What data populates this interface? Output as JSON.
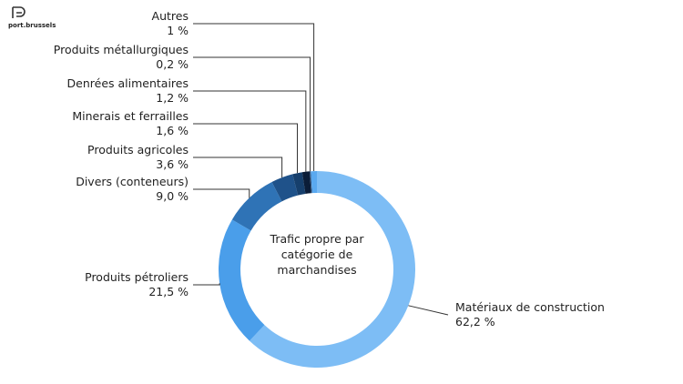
{
  "logo": "port.brussels",
  "chart_data": {
    "type": "donut",
    "center_label": [
      "Trafic propre par",
      "catégorie de",
      "marchandises"
    ],
    "categories": [
      "Matériaux de construction",
      "Produits pétroliers",
      "Divers (conteneurs)",
      "Produits agricoles",
      "Minerais et ferrailles",
      "Denrées alimentaires",
      "Produits métallurgiques",
      "Autres"
    ],
    "values": [
      62.2,
      21.5,
      9.0,
      3.6,
      1.6,
      1.2,
      0.2,
      1
    ],
    "value_labels": [
      "62,2 %",
      "21,5 %",
      "9,0 %",
      "3,6 %",
      "1,6 %",
      "1,2 %",
      "0,2 %",
      "1 %"
    ],
    "colors": [
      "#7dbdf5",
      "#4a9eea",
      "#2f73b6",
      "#1f528a",
      "#163f6c",
      "#0b1d38",
      "#2c4f7a",
      "#5aa9f0"
    ]
  }
}
